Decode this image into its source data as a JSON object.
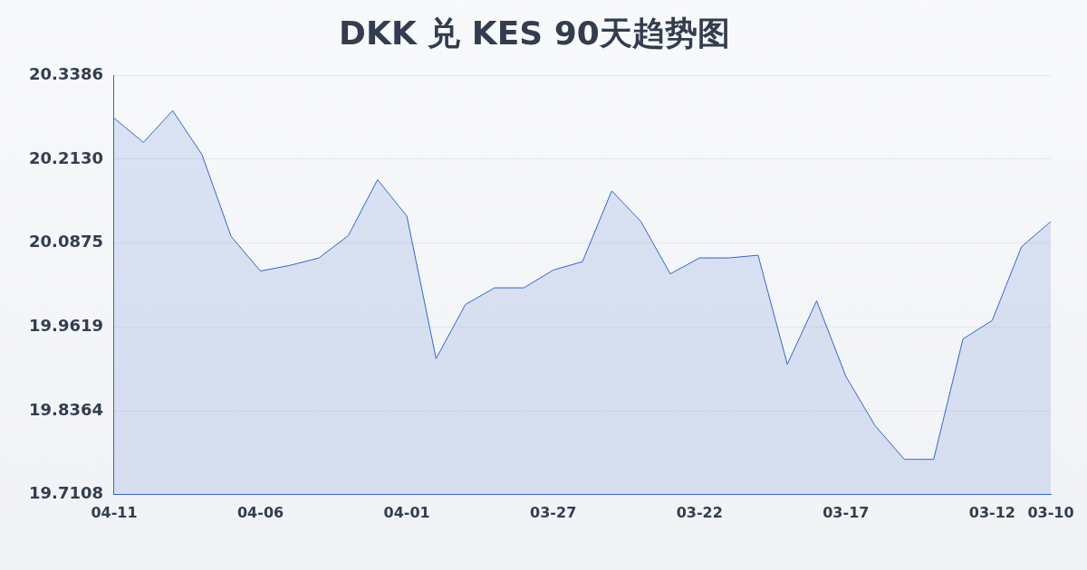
{
  "chart_data": {
    "type": "area",
    "title": "DKK 兑 KES 90天趋势图",
    "categories": [
      "04-11",
      null,
      null,
      null,
      null,
      "04-06",
      null,
      null,
      null,
      null,
      "04-01",
      null,
      null,
      null,
      null,
      "03-27",
      null,
      null,
      null,
      null,
      "03-22",
      null,
      null,
      null,
      null,
      "03-17",
      null,
      null,
      null,
      null,
      "03-12",
      null,
      "03-10"
    ],
    "series": [
      {
        "color": "#3366cc",
        "values": [
          20.2744,
          20.2382,
          20.2856,
          20.22,
          20.0972,
          20.0456,
          20.054,
          20.0652,
          20.0986,
          20.1823,
          20.1279,
          19.9145,
          19.9954,
          20.0205,
          20.0205,
          20.047,
          20.0596,
          20.1656,
          20.1196,
          20.0414,
          20.0652,
          20.0652,
          20.0693,
          19.9061,
          20.001,
          19.888,
          19.814,
          19.7638,
          19.7638,
          19.9438,
          19.9717,
          20.0819,
          20.1196
        ]
      }
    ],
    "ylim": [
      19.7108,
      20.3386
    ],
    "yticks": [
      {
        "value": 19.7108,
        "label": "19.7108"
      },
      {
        "value": 19.8364,
        "label": "19.8364"
      },
      {
        "value": 19.9619,
        "label": "19.9619"
      },
      {
        "value": 20.0875,
        "label": "20.0875"
      },
      {
        "value": 20.213,
        "label": "20.2130"
      },
      {
        "value": 20.3386,
        "label": "20.3386"
      }
    ],
    "grid": "y"
  }
}
